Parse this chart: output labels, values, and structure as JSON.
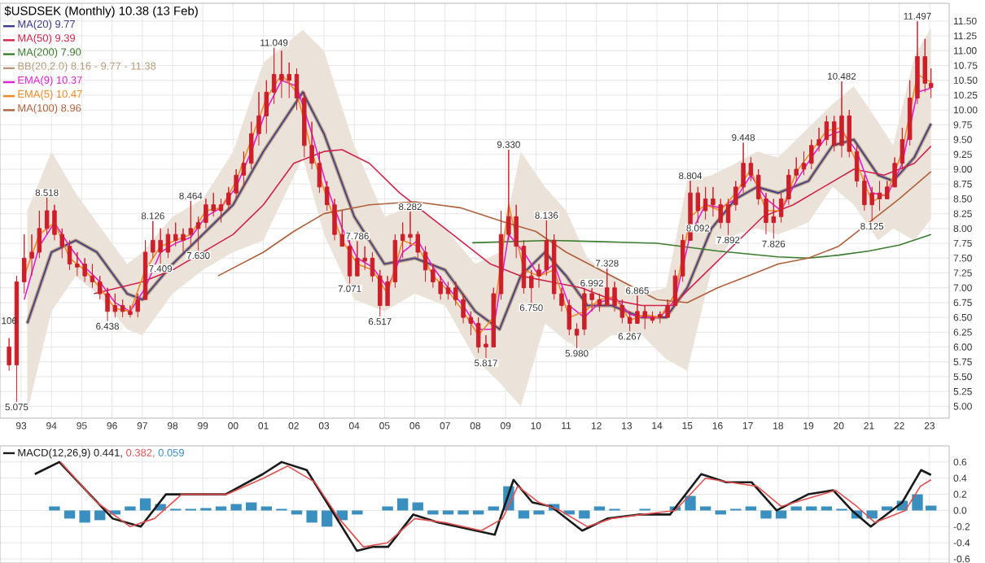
{
  "chart_data": [
    {
      "type": "candlestick",
      "title": "$USDSEK (Monthly) 10.38 (13 Feb)",
      "color": "#cc1f2a",
      "x": [
        1992.6,
        1992.85,
        1993.1,
        1993.35,
        1993.6,
        1993.85,
        1994.1,
        1994.35,
        1994.6,
        1994.85,
        1995.1,
        1995.35,
        1995.6,
        1995.85,
        1996.1,
        1996.35,
        1996.6,
        1996.85,
        1997.1,
        1997.35,
        1997.6,
        1997.85,
        1998.1,
        1998.35,
        1998.6,
        1998.85,
        1999.1,
        1999.35,
        1999.6,
        1999.85,
        2000.1,
        2000.35,
        2000.6,
        2000.85,
        2001.1,
        2001.35,
        2001.6,
        2001.85,
        2002.1,
        2002.35,
        2002.6,
        2002.85,
        2003.1,
        2003.35,
        2003.6,
        2003.85,
        2004.1,
        2004.35,
        2004.6,
        2004.85,
        2005.1,
        2005.35,
        2005.6,
        2005.85,
        2006.1,
        2006.35,
        2006.6,
        2006.85,
        2007.1,
        2007.35,
        2007.6,
        2007.85,
        2008.1,
        2008.35,
        2008.6,
        2008.85,
        2009.1,
        2009.35,
        2009.6,
        2009.85,
        2010.1,
        2010.35,
        2010.6,
        2010.85,
        2011.1,
        2011.35,
        2011.6,
        2011.85,
        2012.1,
        2012.35,
        2012.6,
        2012.85,
        2013.1,
        2013.35,
        2013.6,
        2013.85,
        2014.1,
        2014.35,
        2014.6,
        2014.85,
        2015.1,
        2015.35,
        2015.6,
        2015.85,
        2016.1,
        2016.35,
        2016.6,
        2016.85,
        2017.1,
        2017.35,
        2017.6,
        2017.85,
        2018.1,
        2018.35,
        2018.6,
        2018.85,
        2019.1,
        2019.35,
        2019.6,
        2019.85,
        2020.1,
        2020.35,
        2020.6,
        2020.85,
        2021.1,
        2021.35,
        2021.6,
        2021.85,
        2022.1,
        2022.35,
        2022.6,
        2022.85,
        2023.05
      ],
      "ohlc": [
        [
          6.0,
          6.15,
          5.6,
          5.7
        ],
        [
          5.7,
          7.2,
          5.075,
          7.1
        ],
        [
          7.1,
          7.9,
          6.9,
          7.5
        ],
        [
          7.5,
          7.9,
          7.2,
          7.6
        ],
        [
          7.6,
          8.3,
          7.5,
          8.0
        ],
        [
          8.0,
          8.518,
          7.9,
          8.3
        ],
        [
          8.3,
          8.4,
          7.8,
          7.9
        ],
        [
          7.9,
          8.0,
          7.5,
          7.7
        ],
        [
          7.7,
          7.8,
          7.3,
          7.4
        ],
        [
          7.4,
          7.6,
          7.2,
          7.35
        ],
        [
          7.4,
          7.5,
          7.1,
          7.2
        ],
        [
          7.2,
          7.4,
          7.0,
          7.1
        ],
        [
          7.1,
          7.2,
          6.8,
          6.9
        ],
        [
          6.9,
          7.0,
          6.438,
          6.6
        ],
        [
          6.6,
          6.9,
          6.5,
          6.7
        ],
        [
          6.7,
          6.8,
          6.5,
          6.6
        ],
        [
          6.6,
          6.7,
          6.5,
          6.55
        ],
        [
          6.6,
          6.9,
          6.5,
          6.8
        ],
        [
          6.8,
          7.8,
          6.8,
          7.6
        ],
        [
          7.6,
          8.126,
          7.5,
          7.8
        ],
        [
          7.8,
          8.0,
          7.409,
          7.6
        ],
        [
          7.6,
          8.0,
          7.5,
          7.9
        ],
        [
          7.9,
          8.1,
          7.7,
          7.8
        ],
        [
          7.8,
          8.0,
          7.6,
          7.9
        ],
        [
          7.9,
          8.464,
          7.7,
          8.0
        ],
        [
          8.0,
          8.2,
          7.63,
          8.1
        ],
        [
          8.1,
          8.5,
          8.0,
          8.4
        ],
        [
          8.4,
          8.6,
          8.2,
          8.3
        ],
        [
          8.3,
          8.5,
          8.1,
          8.4
        ],
        [
          8.4,
          8.7,
          8.3,
          8.6
        ],
        [
          8.6,
          9.0,
          8.5,
          8.9
        ],
        [
          8.9,
          9.3,
          8.7,
          9.1
        ],
        [
          9.1,
          9.8,
          9.0,
          9.6
        ],
        [
          9.6,
          10.3,
          9.4,
          9.9
        ],
        [
          9.9,
          10.5,
          9.6,
          10.3
        ],
        [
          10.3,
          11.049,
          10.1,
          10.6
        ],
        [
          10.6,
          11.0,
          10.2,
          10.5
        ],
        [
          10.5,
          10.8,
          10.2,
          10.6
        ],
        [
          10.6,
          10.7,
          10.0,
          10.2
        ],
        [
          10.2,
          10.3,
          9.2,
          9.4
        ],
        [
          9.4,
          9.8,
          9.0,
          9.1
        ],
        [
          9.1,
          9.3,
          8.6,
          8.7
        ],
        [
          8.7,
          8.8,
          8.3,
          8.4
        ],
        [
          8.4,
          8.5,
          7.8,
          7.9
        ],
        [
          7.9,
          8.3,
          7.7,
          7.7
        ],
        [
          7.7,
          7.8,
          7.071,
          7.2
        ],
        [
          7.2,
          7.786,
          7.2,
          7.5
        ],
        [
          7.5,
          7.7,
          7.3,
          7.45
        ],
        [
          7.5,
          7.6,
          7.1,
          7.2
        ],
        [
          7.2,
          7.3,
          6.517,
          6.7
        ],
        [
          6.7,
          7.2,
          6.7,
          7.1
        ],
        [
          7.1,
          7.9,
          7.0,
          7.8
        ],
        [
          7.8,
          8.1,
          7.5,
          7.9
        ],
        [
          7.9,
          8.282,
          7.7,
          7.85
        ],
        [
          7.9,
          7.95,
          7.5,
          7.6
        ],
        [
          7.6,
          7.7,
          7.1,
          7.3
        ],
        [
          7.3,
          7.4,
          7.0,
          7.1
        ],
        [
          7.1,
          7.2,
          6.8,
          6.9
        ],
        [
          6.9,
          7.1,
          6.8,
          7.0
        ],
        [
          7.0,
          7.1,
          6.7,
          6.8
        ],
        [
          6.8,
          6.9,
          6.4,
          6.5
        ],
        [
          6.5,
          6.6,
          6.2,
          6.4
        ],
        [
          6.4,
          6.5,
          5.9,
          6.0
        ],
        [
          6.0,
          6.2,
          5.817,
          6.05
        ],
        [
          6.0,
          7.0,
          6.0,
          6.9
        ],
        [
          6.9,
          8.3,
          6.8,
          7.9
        ],
        [
          7.9,
          9.33,
          7.8,
          8.2
        ],
        [
          8.2,
          8.4,
          7.5,
          7.7
        ],
        [
          7.7,
          7.8,
          6.9,
          7.0
        ],
        [
          7.0,
          7.3,
          6.75,
          7.2
        ],
        [
          7.2,
          7.4,
          7.0,
          7.3
        ],
        [
          7.3,
          8.136,
          7.2,
          7.8
        ],
        [
          7.8,
          7.9,
          6.8,
          6.9
        ],
        [
          6.9,
          7.0,
          6.6,
          6.7
        ],
        [
          6.7,
          6.8,
          6.2,
          6.3
        ],
        [
          6.3,
          6.4,
          5.98,
          6.2
        ],
        [
          6.3,
          7.0,
          6.2,
          6.9
        ],
        [
          6.9,
          6.992,
          6.6,
          6.8
        ],
        [
          6.8,
          6.9,
          6.6,
          6.7
        ],
        [
          6.7,
          7.328,
          6.7,
          7.0
        ],
        [
          7.0,
          7.1,
          6.6,
          6.7
        ],
        [
          6.7,
          6.8,
          6.4,
          6.5
        ],
        [
          6.5,
          6.6,
          6.267,
          6.4
        ],
        [
          6.4,
          6.865,
          6.4,
          6.6
        ],
        [
          6.6,
          6.7,
          6.3,
          6.5
        ],
        [
          6.5,
          6.6,
          6.4,
          6.45
        ],
        [
          6.5,
          6.6,
          6.4,
          6.55
        ],
        [
          6.5,
          6.8,
          6.5,
          6.7
        ],
        [
          6.7,
          7.3,
          6.7,
          7.2
        ],
        [
          7.2,
          7.9,
          7.1,
          7.8
        ],
        [
          7.8,
          8.804,
          7.8,
          8.6
        ],
        [
          8.6,
          8.7,
          8.092,
          8.3
        ],
        [
          8.3,
          8.7,
          8.15,
          8.5
        ],
        [
          8.5,
          8.7,
          8.2,
          8.4
        ],
        [
          8.4,
          8.5,
          8.0,
          8.1
        ],
        [
          8.1,
          8.5,
          7.892,
          8.4
        ],
        [
          8.4,
          8.8,
          8.3,
          8.7
        ],
        [
          8.7,
          9.448,
          8.6,
          9.1
        ],
        [
          9.1,
          9.2,
          8.8,
          8.9
        ],
        [
          8.9,
          9.0,
          8.4,
          8.5
        ],
        [
          8.5,
          8.6,
          7.9,
          8.1
        ],
        [
          8.1,
          8.5,
          7.826,
          8.2
        ],
        [
          8.2,
          8.6,
          8.1,
          8.5
        ],
        [
          8.5,
          9.0,
          8.4,
          8.9
        ],
        [
          8.9,
          9.2,
          8.8,
          9.0
        ],
        [
          9.0,
          9.3,
          8.9,
          9.1
        ],
        [
          9.1,
          9.5,
          9.0,
          9.4
        ],
        [
          9.4,
          9.7,
          9.3,
          9.5
        ],
        [
          9.5,
          9.9,
          9.4,
          9.8
        ],
        [
          9.8,
          9.9,
          9.3,
          9.4
        ],
        [
          9.4,
          10.482,
          9.2,
          9.9
        ],
        [
          9.9,
          10.0,
          9.2,
          9.3
        ],
        [
          9.3,
          9.4,
          8.7,
          8.8
        ],
        [
          8.8,
          8.9,
          8.3,
          8.4
        ],
        [
          8.4,
          8.7,
          8.125,
          8.6
        ],
        [
          8.6,
          8.8,
          8.3,
          8.5
        ],
        [
          8.5,
          8.8,
          8.5,
          8.7
        ],
        [
          8.7,
          9.2,
          8.7,
          9.1
        ],
        [
          9.1,
          9.7,
          9.0,
          9.5
        ],
        [
          9.5,
          10.5,
          9.4,
          10.2
        ],
        [
          10.2,
          11.497,
          10.1,
          10.9
        ],
        [
          10.9,
          11.2,
          10.3,
          10.45
        ],
        [
          10.45,
          10.7,
          10.2,
          10.38
        ]
      ],
      "series": [
        {
          "name": "MA(20) 9.77",
          "type": "line",
          "color": "#3b3b8f",
          "x": [
            1993.2,
            1994,
            1994.8,
            1995.5,
            1996.5,
            1997,
            1998,
            1999,
            2000,
            2001,
            2002.3,
            2003,
            2004,
            2005,
            2006,
            2007,
            2008,
            2008.8,
            2009.5,
            2010.3,
            2011,
            2011.7,
            2012.5,
            2013.5,
            2014.3,
            2015,
            2015.8,
            2016.6,
            2017.3,
            2018,
            2019,
            2019.8,
            2020.5,
            2021.3,
            2021.8,
            2022.5,
            2023.05
          ],
          "values": [
            6.4,
            7.6,
            7.8,
            7.6,
            6.9,
            6.8,
            7.4,
            7.9,
            8.4,
            9.3,
            10.3,
            9.6,
            8.2,
            7.4,
            7.5,
            7.3,
            6.6,
            6.3,
            7.2,
            7.6,
            7.2,
            6.7,
            6.7,
            6.5,
            6.5,
            7.0,
            8.0,
            8.5,
            8.7,
            8.6,
            8.8,
            9.4,
            9.5,
            8.9,
            8.8,
            9.2,
            9.77
          ]
        },
        {
          "name": "MA(50) 9.39",
          "type": "line",
          "color": "#d0234a",
          "x": [
            1995.4,
            1997,
            1998,
            1999,
            2000,
            2001,
            2002,
            2003,
            2003.6,
            2004.5,
            2005.5,
            2006.5,
            2007.5,
            2008.5,
            2009.5,
            2010.5,
            2011.5,
            2012.5,
            2013.5,
            2014.5,
            2015.5,
            2016.5,
            2017.5,
            2018.5,
            2019.5,
            2020.5,
            2021.5,
            2022.5,
            2023.05
          ],
          "values": [
            6.9,
            7.1,
            7.3,
            7.6,
            7.9,
            8.4,
            9.1,
            9.3,
            9.33,
            9.1,
            8.6,
            8.2,
            7.8,
            7.4,
            7.2,
            7.1,
            7.0,
            6.8,
            6.7,
            6.7,
            7.2,
            7.7,
            8.2,
            8.4,
            8.7,
            9.0,
            8.9,
            9.1,
            9.39
          ]
        },
        {
          "name": "MA(200) 7.90",
          "type": "line",
          "color": "#3a7d2c",
          "x": [
            2007.9,
            2010.5,
            2012,
            2014,
            2016,
            2018,
            2019,
            2020,
            2021,
            2022,
            2023.05
          ],
          "values": [
            7.76,
            7.8,
            7.78,
            7.75,
            7.62,
            7.52,
            7.5,
            7.55,
            7.62,
            7.72,
            7.9
          ]
        },
        {
          "name": "BB(20,2.0) 8.16 - 9.77 - 11.38",
          "type": "line",
          "color": "#b89a7a",
          "x": [
            1993.2,
            1994,
            1994.8,
            1995.5,
            1996.5,
            1997,
            1998,
            1999,
            2000,
            2001,
            2002.3,
            2003,
            2004,
            2005,
            2006,
            2007,
            2008,
            2008.8,
            2009.5,
            2010.3,
            2011,
            2011.7,
            2012.5,
            2013.5,
            2014.3,
            2015,
            2015.8,
            2016.6,
            2017.3,
            2018,
            2019,
            2019.8,
            2020.5,
            2021.3,
            2021.8,
            2022.5,
            2023.05
          ],
          "values": [
            6.4,
            7.6,
            7.8,
            7.6,
            6.9,
            6.8,
            7.4,
            7.9,
            8.4,
            9.3,
            10.3,
            9.6,
            8.2,
            7.4,
            7.5,
            7.3,
            6.6,
            6.3,
            7.2,
            7.6,
            7.2,
            6.7,
            6.7,
            6.5,
            6.5,
            7.0,
            8.0,
            8.5,
            8.7,
            8.6,
            8.8,
            9.4,
            9.5,
            8.9,
            8.8,
            9.2,
            9.77
          ],
          "lower": [
            4.9,
            6.6,
            7.2,
            6.9,
            6.3,
            6.2,
            6.9,
            7.3,
            7.6,
            7.8,
            9.2,
            7.9,
            6.8,
            6.6,
            6.9,
            6.7,
            5.8,
            5.4,
            5.0,
            6.4,
            6.1,
            5.9,
            6.2,
            6.2,
            5.8,
            5.6,
            7.3,
            7.9,
            8.0,
            7.9,
            8.1,
            8.7,
            8.4,
            7.8,
            8.0,
            7.8,
            8.16
          ],
          "upper": [
            8.3,
            9.3,
            8.6,
            8.1,
            7.4,
            7.6,
            8.2,
            8.5,
            9.3,
            10.8,
            11.35,
            11.0,
            9.4,
            8.2,
            8.4,
            8.0,
            7.4,
            7.6,
            9.3,
            8.7,
            8.3,
            7.5,
            7.2,
            6.9,
            7.0,
            8.8,
            8.9,
            9.1,
            9.3,
            9.2,
            9.7,
            10.1,
            10.4,
            9.8,
            9.4,
            10.9,
            11.38
          ]
        },
        {
          "name": "EMA(9) 10.37",
          "type": "line",
          "color": "#e020d0",
          "x": [
            1993.1,
            1993.6,
            1994.1,
            1994.6,
            1995.1,
            1995.6,
            1996.1,
            1996.6,
            1997.1,
            1997.6,
            1998.1,
            1998.6,
            1999.1,
            1999.6,
            2000.1,
            2000.6,
            2001.1,
            2001.6,
            2002.1,
            2002.6,
            2003.1,
            2003.6,
            2004.1,
            2004.6,
            2005.1,
            2005.6,
            2006.1,
            2006.6,
            2007.1,
            2007.6,
            2008.1,
            2008.6,
            2009.1,
            2009.6,
            2010.1,
            2010.6,
            2011.1,
            2011.6,
            2012.1,
            2012.6,
            2013.1,
            2013.6,
            2014.1,
            2014.6,
            2015.1,
            2015.6,
            2016.1,
            2016.6,
            2017.1,
            2017.6,
            2018.1,
            2018.6,
            2019.1,
            2019.6,
            2020.1,
            2020.6,
            2021.1,
            2021.6,
            2022.1,
            2022.6,
            2023.05
          ],
          "values": [
            6.8,
            7.7,
            8.1,
            7.7,
            7.35,
            7.1,
            6.75,
            6.6,
            7.0,
            7.6,
            7.75,
            7.85,
            8.2,
            8.35,
            8.7,
            9.3,
            10.0,
            10.5,
            10.4,
            9.6,
            8.7,
            8.0,
            7.5,
            7.35,
            7.0,
            7.6,
            7.8,
            7.35,
            7.0,
            6.7,
            6.3,
            6.3,
            7.9,
            7.6,
            7.2,
            7.4,
            6.7,
            6.5,
            6.75,
            6.85,
            6.55,
            6.5,
            6.5,
            6.8,
            7.9,
            8.4,
            8.35,
            8.5,
            8.9,
            8.5,
            8.3,
            8.8,
            9.2,
            9.55,
            9.65,
            9.3,
            8.6,
            8.55,
            9.1,
            10.3,
            10.37
          ]
        },
        {
          "name": "EMA(5) 10.47",
          "type": "line",
          "color": "#f08a24",
          "x": [
            1993.1,
            1993.6,
            1994.1,
            1994.6,
            1995.1,
            1995.6,
            1996.1,
            1996.6,
            1997.1,
            1997.6,
            1998.1,
            1998.6,
            1999.1,
            1999.6,
            2000.1,
            2000.6,
            2001.1,
            2001.6,
            2002.1,
            2002.6,
            2003.1,
            2003.6,
            2004.1,
            2004.6,
            2005.1,
            2005.6,
            2006.1,
            2006.6,
            2007.1,
            2007.6,
            2008.1,
            2008.6,
            2009.1,
            2009.6,
            2010.1,
            2010.6,
            2011.1,
            2011.6,
            2012.1,
            2012.6,
            2013.1,
            2013.6,
            2014.1,
            2014.6,
            2015.1,
            2015.6,
            2016.1,
            2016.6,
            2017.1,
            2017.6,
            2018.1,
            2018.6,
            2019.1,
            2019.6,
            2020.1,
            2020.6,
            2021.1,
            2021.6,
            2022.1,
            2022.6,
            2023.05
          ],
          "values": [
            7.2,
            7.9,
            8.1,
            7.5,
            7.3,
            7.0,
            6.65,
            6.6,
            7.3,
            7.7,
            7.8,
            7.9,
            8.3,
            8.35,
            8.8,
            9.5,
            10.2,
            10.6,
            10.3,
            9.3,
            8.5,
            7.8,
            7.4,
            7.3,
            6.9,
            7.8,
            7.7,
            7.2,
            6.95,
            6.6,
            6.2,
            6.5,
            8.4,
            7.3,
            7.2,
            7.3,
            6.5,
            6.6,
            6.8,
            6.85,
            6.45,
            6.55,
            6.5,
            6.9,
            8.2,
            8.4,
            8.3,
            8.6,
            9.0,
            8.3,
            8.3,
            8.95,
            9.3,
            9.65,
            9.7,
            9.1,
            8.45,
            8.6,
            9.3,
            10.6,
            10.47
          ]
        },
        {
          "name": "MA(100) 8.96",
          "type": "line",
          "color": "#b0603a",
          "x": [
            1999.5,
            2001,
            2002,
            2003,
            2004.5,
            2006,
            2007.5,
            2009,
            2010,
            2011,
            2012.5,
            2014,
            2015,
            2016,
            2017,
            2018,
            2019,
            2020,
            2021,
            2022,
            2023.05
          ],
          "values": [
            7.2,
            7.6,
            7.95,
            8.25,
            8.4,
            8.45,
            8.35,
            8.1,
            7.95,
            7.6,
            7.2,
            6.8,
            6.75,
            7.0,
            7.2,
            7.4,
            7.5,
            7.7,
            8.1,
            8.5,
            8.96
          ]
        }
      ],
      "annotations": [
        "106",
        {
          "text": "5.075",
          "x": 1992.85,
          "y": 5.075
        },
        {
          "text": "8.518",
          "x": 1993.85,
          "y": 8.518
        },
        {
          "text": "6.438",
          "x": 1995.85,
          "y": 6.438
        },
        {
          "text": "8.126",
          "x": 1997.35,
          "y": 8.126
        },
        {
          "text": "7.409",
          "x": 1997.6,
          "y": 7.409
        },
        {
          "text": "8.464",
          "x": 1998.6,
          "y": 8.464
        },
        {
          "text": "7.630",
          "x": 1998.85,
          "y": 7.63
        },
        {
          "text": "11.049",
          "x": 2001.35,
          "y": 11.049
        },
        {
          "text": "7.071",
          "x": 2003.85,
          "y": 7.071
        },
        {
          "text": "7.786",
          "x": 2004.1,
          "y": 7.786
        },
        {
          "text": "6.517",
          "x": 2004.85,
          "y": 6.517
        },
        {
          "text": "8.282",
          "x": 2005.85,
          "y": 8.282
        },
        {
          "text": "5.817",
          "x": 2008.35,
          "y": 5.817
        },
        {
          "text": "9.330",
          "x": 2009.1,
          "y": 9.33
        },
        {
          "text": "6.750",
          "x": 2009.85,
          "y": 6.75
        },
        {
          "text": "8.136",
          "x": 2010.35,
          "y": 8.136
        },
        {
          "text": "5.980",
          "x": 2011.35,
          "y": 5.98
        },
        {
          "text": "6.992",
          "x": 2011.85,
          "y": 6.992
        },
        {
          "text": "7.328",
          "x": 2012.35,
          "y": 7.328
        },
        {
          "text": "6.267",
          "x": 2013.1,
          "y": 6.267
        },
        {
          "text": "6.865",
          "x": 2013.35,
          "y": 6.865
        },
        {
          "text": "8.804",
          "x": 2015.1,
          "y": 8.804
        },
        {
          "text": "8.092",
          "x": 2015.35,
          "y": 8.092
        },
        {
          "text": "7.892",
          "x": 2016.35,
          "y": 7.892
        },
        {
          "text": "9.448",
          "x": 2016.85,
          "y": 9.448
        },
        {
          "text": "7.826",
          "x": 2017.85,
          "y": 7.826
        },
        {
          "text": "10.482",
          "x": 2020.1,
          "y": 10.482
        },
        {
          "text": "8.125",
          "x": 2021.1,
          "y": 8.125
        },
        {
          "text": "11.497",
          "x": 2022.6,
          "y": 11.497
        }
      ],
      "xlim": [
        1992.3,
        2023.65
      ],
      "ylim": [
        4.8,
        11.8
      ],
      "xticks": [
        {
          "value": 1993,
          "label": "93"
        },
        {
          "value": 1994,
          "label": "94"
        },
        {
          "value": 1995,
          "label": "95"
        },
        {
          "value": 1996,
          "label": "96"
        },
        {
          "value": 1997,
          "label": "97"
        },
        {
          "value": 1998,
          "label": "98"
        },
        {
          "value": 1999,
          "label": "99"
        },
        {
          "value": 2000,
          "label": "00"
        },
        {
          "value": 2001,
          "label": "01"
        },
        {
          "value": 2002,
          "label": "02"
        },
        {
          "value": 2003,
          "label": "03"
        },
        {
          "value": 2004,
          "label": "04"
        },
        {
          "value": 2005,
          "label": "05"
        },
        {
          "value": 2006,
          "label": "06"
        },
        {
          "value": 2007,
          "label": "07"
        },
        {
          "value": 2008,
          "label": "08"
        },
        {
          "value": 2009,
          "label": "09"
        },
        {
          "value": 2010,
          "label": "10"
        },
        {
          "value": 2011,
          "label": "11"
        },
        {
          "value": 2012,
          "label": "12"
        },
        {
          "value": 2013,
          "label": "13"
        },
        {
          "value": 2014,
          "label": "14"
        },
        {
          "value": 2015,
          "label": "15"
        },
        {
          "value": 2016,
          "label": "16"
        },
        {
          "value": 2017,
          "label": "17"
        },
        {
          "value": 2018,
          "label": "18"
        },
        {
          "value": 2019,
          "label": "19"
        },
        {
          "value": 2020,
          "label": "20"
        },
        {
          "value": 2021,
          "label": "21"
        },
        {
          "value": 2022,
          "label": "22"
        },
        {
          "value": 2023,
          "label": "23"
        }
      ],
      "yticks": [
        {
          "value": 5,
          "label": "5.00"
        },
        {
          "value": 5.25,
          "label": "5.25"
        },
        {
          "value": 5.5,
          "label": "5.50"
        },
        {
          "value": 5.75,
          "label": "5.75"
        },
        {
          "value": 6,
          "label": "6.00"
        },
        {
          "value": 6.25,
          "label": "6.25"
        },
        {
          "value": 6.5,
          "label": "6.50"
        },
        {
          "value": 6.75,
          "label": "6.75"
        },
        {
          "value": 7,
          "label": "7.00"
        },
        {
          "value": 7.25,
          "label": "7.25"
        },
        {
          "value": 7.5,
          "label": "7.50"
        },
        {
          "value": 7.75,
          "label": "7.75"
        },
        {
          "value": 8,
          "label": "8.00"
        },
        {
          "value": 8.25,
          "label": "8.25"
        },
        {
          "value": 8.5,
          "label": "8.50"
        },
        {
          "value": 8.75,
          "label": "8.75"
        },
        {
          "value": 9,
          "label": "9.00"
        },
        {
          "value": 9.25,
          "label": "9.25"
        },
        {
          "value": 9.5,
          "label": "9.50"
        },
        {
          "value": 9.75,
          "label": "9.75"
        },
        {
          "value": 10,
          "label": "10.00"
        },
        {
          "value": 10.25,
          "label": "10.25"
        },
        {
          "value": 10.5,
          "label": "10.50"
        },
        {
          "value": 10.75,
          "label": "10.75"
        },
        {
          "value": 11,
          "label": "11.00"
        },
        {
          "value": 11.25,
          "label": "11.25"
        },
        {
          "value": 11.5,
          "label": "11.50"
        }
      ],
      "grid": true,
      "legend": "top left"
    },
    {
      "type": "line",
      "series": [
        {
          "name": "0.059",
          "type": "bar",
          "color": "#3a8fbf",
          "x": [
            1994.1,
            1994.6,
            1995.1,
            1995.6,
            1996.1,
            1996.6,
            1997.1,
            1997.6,
            1998.1,
            1998.6,
            1999.1,
            1999.6,
            2000.1,
            2000.6,
            2001.1,
            2001.6,
            2002.1,
            2002.6,
            2003.1,
            2003.6,
            2004.1,
            2004.6,
            2005.1,
            2005.6,
            2006.1,
            2006.6,
            2007.1,
            2007.6,
            2008.1,
            2008.6,
            2009.1,
            2009.6,
            2010.1,
            2010.6,
            2011.1,
            2011.6,
            2012.1,
            2012.6,
            2013.1,
            2013.6,
            2014.1,
            2014.6,
            2015.1,
            2015.6,
            2016.1,
            2016.6,
            2017.1,
            2017.6,
            2018.1,
            2018.6,
            2019.1,
            2019.6,
            2020.1,
            2020.6,
            2021.1,
            2021.6,
            2022.1,
            2022.6,
            2023.05
          ],
          "values": [
            0.05,
            -0.1,
            -0.15,
            -0.12,
            -0.05,
            0.05,
            0.15,
            0.08,
            0.02,
            0.02,
            0.03,
            0.05,
            0.08,
            0.1,
            0.05,
            0.02,
            -0.05,
            -0.15,
            -0.2,
            -0.12,
            -0.05,
            0.0,
            0.05,
            0.15,
            0.1,
            -0.05,
            -0.05,
            -0.05,
            -0.05,
            0.05,
            0.3,
            -0.1,
            -0.05,
            0.08,
            -0.05,
            -0.1,
            0.05,
            0.02,
            0.0,
            0.02,
            0.0,
            0.05,
            0.18,
            0.05,
            -0.05,
            0.02,
            0.05,
            -0.1,
            -0.1,
            0.05,
            0.05,
            0.05,
            0.02,
            -0.1,
            -0.1,
            0.05,
            0.12,
            0.2,
            0.06
          ]
        },
        {
          "name": "MACD(12,26,9) 0.441,",
          "type": "line",
          "color": "#1a1a1a",
          "x": [
            1993.45,
            1994.26,
            1996.02,
            1996.95,
            1997.78,
            1998.5,
            1999.75,
            2000.98,
            2001.6,
            2002.43,
            2003.26,
            2004.09,
            2004.6,
            2005.12,
            2005.95,
            2006.78,
            2008.02,
            2008.64,
            2009.26,
            2009.88,
            2010.5,
            2011.53,
            2012.36,
            2013.39,
            2014.43,
            2015.46,
            2016.29,
            2017.12,
            2017.95,
            2018.99,
            2019.82,
            2020.44,
            2021.06,
            2022.1,
            2022.72,
            2023.05
          ],
          "values": [
            0.45,
            0.6,
            -0.1,
            -0.2,
            0.2,
            0.2,
            0.2,
            0.45,
            0.6,
            0.5,
            0.0,
            -0.5,
            -0.45,
            -0.45,
            -0.05,
            -0.15,
            -0.25,
            -0.3,
            0.38,
            0.1,
            0.05,
            -0.25,
            -0.1,
            -0.05,
            -0.05,
            0.45,
            0.35,
            0.35,
            0.0,
            0.2,
            0.25,
            0.0,
            -0.2,
            0.1,
            0.5,
            0.44
          ]
        },
        {
          "name": "0.382,",
          "type": "line",
          "color": "#e05050",
          "x": [
            1994.3,
            1995.5,
            1996.6,
            1997.4,
            1998.3,
            1999.8,
            2001,
            2001.8,
            2002.7,
            2003.5,
            2004.3,
            2005.1,
            2006,
            2007,
            2008.2,
            2008.9,
            2009.4,
            2010.1,
            2010.8,
            2011.7,
            2012.5,
            2013.5,
            2014.6,
            2015.6,
            2016.4,
            2017.3,
            2018.1,
            2019,
            2019.9,
            2020.6,
            2021.2,
            2022.2,
            2022.7,
            2023.05
          ],
          "values": [
            0.6,
            0.1,
            -0.2,
            -0.1,
            0.2,
            0.2,
            0.4,
            0.55,
            0.35,
            -0.1,
            -0.45,
            -0.4,
            -0.1,
            -0.15,
            -0.25,
            -0.1,
            0.3,
            0.1,
            0.0,
            -0.2,
            -0.1,
            -0.05,
            0.0,
            0.4,
            0.35,
            0.3,
            0.05,
            0.15,
            0.25,
            0.05,
            -0.15,
            0.0,
            0.3,
            0.38
          ]
        }
      ],
      "xlim": [
        1992.3,
        2023.65
      ],
      "ylim": [
        -0.65,
        0.8
      ],
      "xticks": [
        1993,
        1994,
        1995,
        1996,
        1997,
        1998,
        1999,
        2000,
        2001,
        2002,
        2003,
        2004,
        2005,
        2006,
        2007,
        2008,
        2009,
        2010,
        2011,
        2012,
        2013,
        2014,
        2015,
        2016,
        2017,
        2018,
        2019,
        2020,
        2021,
        2022,
        2023
      ],
      "yticks": [
        0.6,
        0.4,
        0.2,
        {
          "value": 0,
          "label": "0.0"
        },
        -0.2,
        -0.4,
        -0.6
      ],
      "tick_labels": "y",
      "grid": true,
      "legend": "top left"
    }
  ]
}
